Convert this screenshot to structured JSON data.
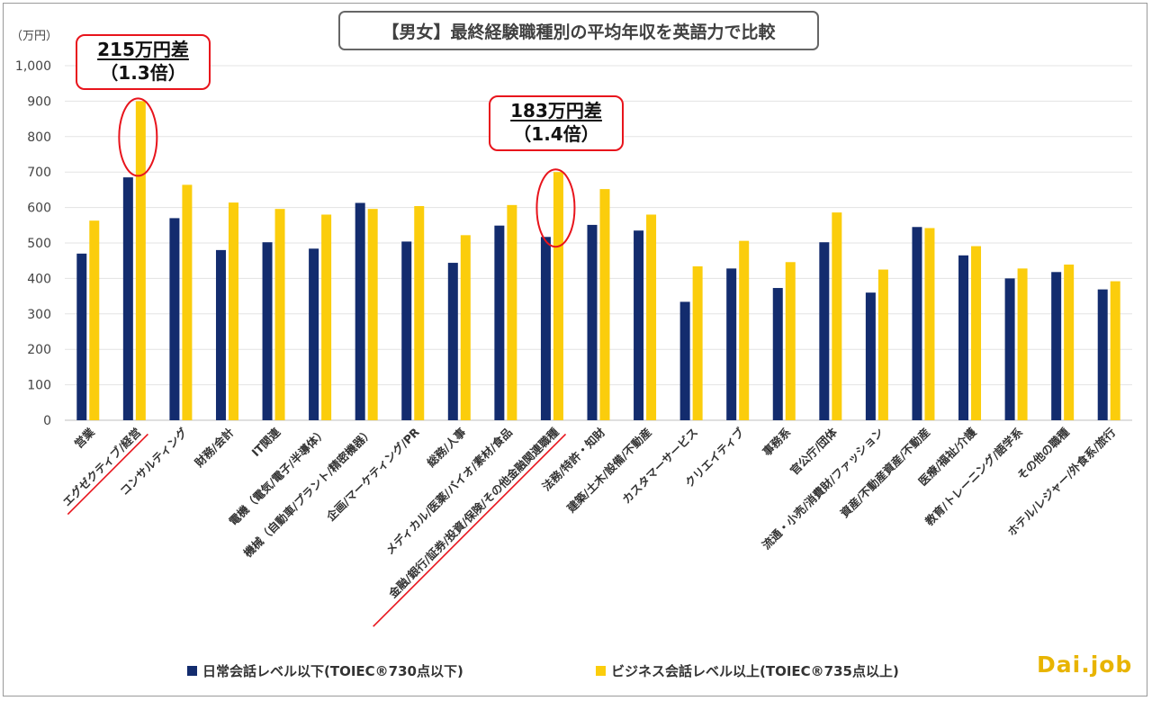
{
  "title": "【男女】最終経験職種別の平均年収を英語力で比較",
  "unit_label": "（万円）",
  "colors": {
    "series1": "#132c6e",
    "series2": "#fbcd0c",
    "highlight": "#e8141c",
    "axis": "#bfbfbf"
  },
  "annotations": [
    {
      "line1": "215万円差",
      "line2": "（1.3倍）"
    },
    {
      "line1": "183万円差",
      "line2": "（1.4倍）"
    }
  ],
  "logo": "Dai.job",
  "chart_data": {
    "type": "bar",
    "title": "【男女】最終経験職種別の平均年収を英語力で比較",
    "ylabel": "（万円）",
    "ylim": [
      0,
      1000
    ],
    "yticks": [
      0,
      100,
      200,
      300,
      400,
      500,
      600,
      700,
      800,
      900,
      1000
    ],
    "ytick_labels": [
      "0",
      "100",
      "200",
      "300",
      "400",
      "500",
      "600",
      "700",
      "800",
      "900",
      "1,000"
    ],
    "grid": true,
    "legend_position": "bottom",
    "categories": [
      "営業",
      "エグゼクティブ/経営",
      "コンサルティング",
      "財務/会計",
      "IT関連",
      "電機（電気/電子/半導体）",
      "機械（自動車/プラント/精密機器）",
      "企画/マーケティング/PR",
      "総務/人事",
      "メディカル/医薬/バイオ/素材/食品",
      "金融/銀行/証券/投資/保険/その他金融関連職種",
      "法務/特許・知財",
      "建築/土木/設備/不動産",
      "カスタマーサービス",
      "クリエイティブ",
      "事務系",
      "官公庁/団体",
      "流通・小売/消費財/ファッション",
      "資産/不動産資産/不動産",
      "医療/福祉/介護",
      "教育/トレーニング/語学系",
      "その他の職種",
      "ホテル/レジャー/外食系/旅行"
    ],
    "highlighted_categories": [
      1,
      10
    ],
    "series": [
      {
        "name": "日常会話レベル以下(TOIEC®730点以下)",
        "values": [
          470,
          685,
          570,
          480,
          502,
          484,
          613,
          504,
          444,
          549,
          517,
          551,
          535,
          334,
          428,
          373,
          502,
          360,
          545,
          465,
          400,
          418,
          369
        ]
      },
      {
        "name": "ビジネス会話レベル以上(TOIEC®735点以上)",
        "values": [
          563,
          900,
          664,
          614,
          596,
          580,
          596,
          604,
          522,
          607,
          700,
          652,
          580,
          434,
          506,
          446,
          586,
          425,
          542,
          491,
          428,
          439,
          392
        ]
      }
    ]
  }
}
